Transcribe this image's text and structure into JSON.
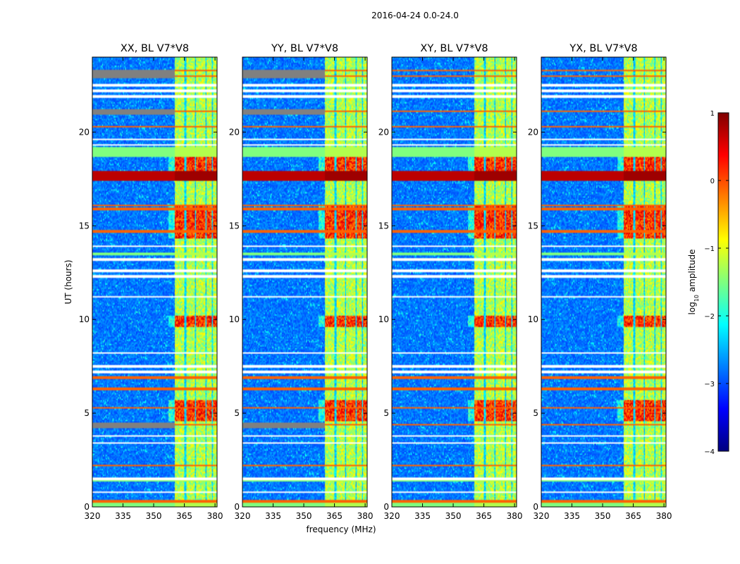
{
  "figure": {
    "title": "2016-04-24 0.0-24.0"
  },
  "colors": {
    "jet": [
      "#00007f",
      "#0000ff",
      "#007fff",
      "#00ffff",
      "#7fff7f",
      "#ffff00",
      "#ff7f00",
      "#ff0000",
      "#7f0000"
    ],
    "flag_gray": "#808080"
  },
  "chart_data": {
    "type": "heatmap",
    "xlabel": "frequency (MHz)",
    "ylabel": "UT (hours)",
    "xlim": [
      320,
      381
    ],
    "ylim": [
      0,
      24
    ],
    "xticks": [
      320,
      335,
      350,
      365,
      380
    ],
    "xtick_labels": [
      "320",
      "335",
      "350",
      "365",
      "380"
    ],
    "yticks": [
      0,
      5,
      10,
      15,
      20
    ],
    "ytick_labels": [
      "0",
      "5",
      "10",
      "15",
      "20"
    ],
    "colorbar": {
      "label": "log$_{10}$ amplitude",
      "label_main": "log",
      "label_sub": "10",
      "label_tail": " amplitude",
      "range": [
        -4,
        1
      ],
      "ticks": [
        1,
        0,
        -1,
        -2,
        -3,
        -4
      ],
      "tick_labels": [
        "1",
        "0",
        "−1",
        "−2",
        "−3",
        "−4"
      ]
    },
    "rfi_band_mhz": [
      360.5,
      381
    ],
    "rfi_channel_gaps_mhz": [
      365.5,
      370.5,
      375.5,
      378.8
    ],
    "strong_rfi_hours": [
      [
        17.4,
        17.9
      ]
    ],
    "bright_bursts_hours": [
      [
        14.3,
        16.1
      ],
      [
        9.6,
        10.2
      ],
      [
        4.6,
        5.7
      ],
      [
        17.9,
        18.7
      ]
    ],
    "flagged_hours_orange": [
      0.3,
      2.2,
      4.4,
      5.3,
      6.3,
      6.9,
      14.7,
      15.9,
      16.1,
      20.3,
      21.1,
      23.0,
      23.3
    ],
    "flagged_hours_white": [
      0.8,
      1.5,
      3.4,
      3.8,
      7.2,
      7.5,
      8.2,
      11.2,
      12.3,
      12.6,
      13.2,
      13.9,
      19.3,
      19.6,
      21.9,
      22.2,
      22.5
    ],
    "flagged_hours_green": [
      0.1,
      1.45,
      13.5,
      18.9,
      19.1
    ],
    "panels": [
      {
        "title": "XX, BL V7*V8",
        "gray_hours": [
          [
            22.9,
            23.3
          ],
          [
            20.9,
            21.2
          ],
          [
            4.2,
            4.5
          ]
        ]
      },
      {
        "title": "YY, BL V7*V8",
        "gray_hours": [
          [
            22.9,
            23.3
          ],
          [
            20.9,
            21.2
          ],
          [
            4.2,
            4.5
          ]
        ]
      },
      {
        "title": "XY, BL V7*V8",
        "gray_hours": []
      },
      {
        "title": "YX, BL V7*V8",
        "gray_hours": []
      }
    ]
  }
}
